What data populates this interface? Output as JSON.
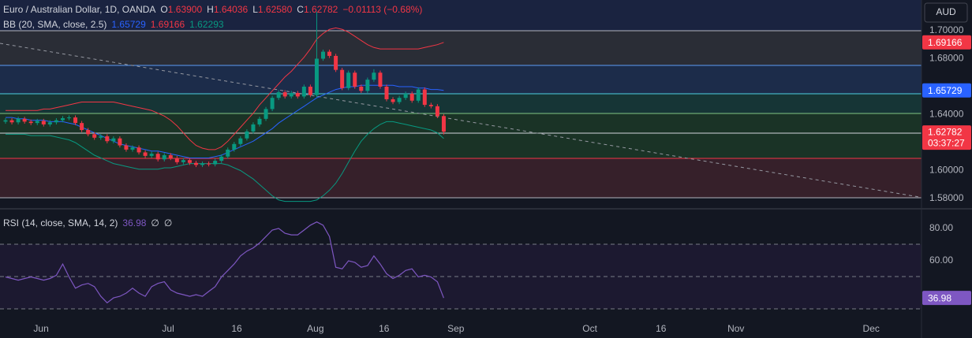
{
  "chart_data": [
    {
      "type": "candlestick",
      "title": "Euro / Australian Dollar, 1D, OANDA",
      "status_line": [
        {
          "label": "O",
          "value": "1.63900"
        },
        {
          "label": "H",
          "value": "1.64036"
        },
        {
          "label": "L",
          "value": "1.62580"
        },
        {
          "label": "C",
          "value": "1.62782"
        }
      ],
      "change": "−0.01113 (−0.68%)",
      "indicator": "BB (20, SMA, close, 2.5)",
      "currency": "AUD",
      "countdown": "03:37:27",
      "up_color": "#089981",
      "down_color": "#f23645",
      "xlim": [
        -0.87,
        144.1
      ],
      "ylim": [
        1.57437,
        1.72197
      ],
      "yticks": [
        {
          "value": 1.7,
          "label": "1.70000"
        },
        {
          "value": 1.68,
          "label": "1.68000"
        },
        {
          "value": 1.64,
          "label": "1.64000"
        },
        {
          "value": 1.6,
          "label": "1.60000"
        },
        {
          "value": 1.58,
          "label": "1.58000"
        }
      ],
      "open": [
        1.635,
        1.636,
        1.6345,
        1.637,
        1.635,
        1.634,
        1.6355,
        1.633,
        1.6345,
        1.636,
        1.6375,
        1.638,
        1.634,
        1.629,
        1.626,
        1.6235,
        1.6245,
        1.621,
        1.623,
        1.618,
        1.615,
        1.6165,
        1.613,
        1.6105,
        1.612,
        1.608,
        1.611,
        1.609,
        1.606,
        1.6075,
        1.6055,
        1.604,
        1.605,
        1.6045,
        1.607,
        1.61,
        1.615,
        1.619,
        1.623,
        1.628,
        1.633,
        1.637,
        1.644,
        1.652,
        1.656,
        1.653,
        1.6555,
        1.653,
        1.66,
        1.654,
        1.68,
        1.685,
        1.682,
        1.672,
        1.659,
        1.67,
        1.66,
        1.657,
        1.665,
        1.67,
        1.66,
        1.651,
        1.649,
        1.652,
        1.655,
        1.65,
        1.658,
        1.647,
        1.646,
        1.639
      ],
      "high": [
        1.6375,
        1.6375,
        1.6385,
        1.6385,
        1.6365,
        1.637,
        1.637,
        1.636,
        1.6375,
        1.639,
        1.6395,
        1.6395,
        1.6355,
        1.6305,
        1.6275,
        1.626,
        1.626,
        1.6245,
        1.6245,
        1.6195,
        1.618,
        1.618,
        1.6145,
        1.6135,
        1.6135,
        1.6125,
        1.6125,
        1.6105,
        1.609,
        1.609,
        1.607,
        1.6065,
        1.6065,
        1.6085,
        1.6115,
        1.6165,
        1.6205,
        1.6245,
        1.6295,
        1.6345,
        1.6385,
        1.6455,
        1.6535,
        1.6575,
        1.6575,
        1.657,
        1.657,
        1.6615,
        1.6615,
        1.7135,
        1.6865,
        1.6865,
        1.6835,
        1.6735,
        1.6715,
        1.6715,
        1.6615,
        1.6665,
        1.6725,
        1.6715,
        1.6615,
        1.6525,
        1.6535,
        1.6565,
        1.6565,
        1.6595,
        1.6595,
        1.6485,
        1.6475,
        1.64036
      ],
      "low": [
        1.6335,
        1.633,
        1.633,
        1.6335,
        1.6325,
        1.6325,
        1.6315,
        1.6315,
        1.633,
        1.6345,
        1.636,
        1.6325,
        1.6275,
        1.6245,
        1.622,
        1.622,
        1.6195,
        1.6195,
        1.6165,
        1.6135,
        1.6135,
        1.6115,
        1.609,
        1.609,
        1.6065,
        1.6065,
        1.6075,
        1.6045,
        1.6045,
        1.604,
        1.6025,
        1.6025,
        1.603,
        1.603,
        1.6055,
        1.6085,
        1.6135,
        1.6175,
        1.6215,
        1.6265,
        1.6315,
        1.6355,
        1.6425,
        1.6505,
        1.6515,
        1.6515,
        1.6515,
        1.6515,
        1.6525,
        1.6525,
        1.6785,
        1.6805,
        1.6705,
        1.6575,
        1.6575,
        1.6585,
        1.6555,
        1.6555,
        1.6635,
        1.6585,
        1.6495,
        1.6475,
        1.6475,
        1.6505,
        1.6485,
        1.6485,
        1.6455,
        1.6445,
        1.6375,
        1.6258
      ],
      "close": [
        1.636,
        1.6345,
        1.637,
        1.635,
        1.634,
        1.6355,
        1.633,
        1.6345,
        1.636,
        1.6375,
        1.638,
        1.634,
        1.629,
        1.626,
        1.6235,
        1.6245,
        1.621,
        1.623,
        1.618,
        1.615,
        1.6165,
        1.613,
        1.6105,
        1.612,
        1.608,
        1.611,
        1.609,
        1.606,
        1.6075,
        1.6055,
        1.604,
        1.605,
        1.6045,
        1.607,
        1.61,
        1.615,
        1.619,
        1.623,
        1.628,
        1.633,
        1.637,
        1.644,
        1.652,
        1.656,
        1.653,
        1.6555,
        1.653,
        1.66,
        1.654,
        1.68,
        1.685,
        1.682,
        1.672,
        1.659,
        1.67,
        1.66,
        1.657,
        1.665,
        1.67,
        1.66,
        1.651,
        1.649,
        1.652,
        1.655,
        1.65,
        1.658,
        1.647,
        1.646,
        1.639,
        1.62782
      ],
      "bands": [
        {
          "color": "#f23645",
          "values": [
            1.643,
            1.643,
            1.643,
            1.643,
            1.643,
            1.643,
            1.644,
            1.644,
            1.645,
            1.646,
            1.647,
            1.648,
            1.649,
            1.649,
            1.649,
            1.649,
            1.649,
            1.649,
            1.648,
            1.647,
            1.646,
            1.645,
            1.644,
            1.643,
            1.641,
            1.639,
            1.636,
            1.632,
            1.627,
            1.622,
            1.618,
            1.616,
            1.615,
            1.615,
            1.617,
            1.621,
            1.626,
            1.631,
            1.636,
            1.641,
            1.647,
            1.652,
            1.657,
            1.662,
            1.667,
            1.671,
            1.676,
            1.681,
            1.687,
            1.694,
            1.698,
            1.701,
            1.702,
            1.701,
            1.699,
            1.696,
            1.693,
            1.69,
            1.688,
            1.687,
            1.687,
            1.687,
            1.687,
            1.687,
            1.687,
            1.687,
            1.688,
            1.689,
            1.69,
            1.69166
          ]
        },
        {
          "color": "#2962ff",
          "values": [
            1.638,
            1.638,
            1.637,
            1.637,
            1.636,
            1.636,
            1.636,
            1.635,
            1.635,
            1.635,
            1.634,
            1.633,
            1.631,
            1.629,
            1.627,
            1.625,
            1.623,
            1.621,
            1.619,
            1.618,
            1.617,
            1.616,
            1.615,
            1.614,
            1.614,
            1.613,
            1.612,
            1.611,
            1.61,
            1.609,
            1.609,
            1.609,
            1.609,
            1.61,
            1.611,
            1.613,
            1.615,
            1.617,
            1.619,
            1.621,
            1.624,
            1.627,
            1.63,
            1.634,
            1.637,
            1.64,
            1.643,
            1.646,
            1.649,
            1.652,
            1.654,
            1.656,
            1.658,
            1.659,
            1.66,
            1.66,
            1.661,
            1.661,
            1.661,
            1.661,
            1.661,
            1.661,
            1.66,
            1.66,
            1.66,
            1.659,
            1.659,
            1.658,
            1.658,
            1.65729
          ]
        },
        {
          "color": "#089981",
          "values": [
            1.626,
            1.626,
            1.626,
            1.626,
            1.625,
            1.625,
            1.625,
            1.625,
            1.624,
            1.623,
            1.622,
            1.62,
            1.617,
            1.614,
            1.611,
            1.609,
            1.607,
            1.605,
            1.604,
            1.603,
            1.602,
            1.601,
            1.601,
            1.601,
            1.601,
            1.602,
            1.602,
            1.603,
            1.604,
            1.605,
            1.605,
            1.605,
            1.605,
            1.605,
            1.605,
            1.604,
            1.602,
            1.6,
            1.597,
            1.594,
            1.59,
            1.586,
            1.582,
            1.579,
            1.578,
            1.578,
            1.578,
            1.578,
            1.578,
            1.579,
            1.582,
            1.586,
            1.591,
            1.598,
            1.606,
            1.614,
            1.621,
            1.626,
            1.63,
            1.633,
            1.635,
            1.635,
            1.634,
            1.633,
            1.632,
            1.631,
            1.63,
            1.629,
            1.627,
            1.62293
          ]
        }
      ]
    },
    {
      "type": "line",
      "title": "RSI (14, close, SMA, 14, 2)",
      "indicator_extras": [
        "∅",
        "∅"
      ],
      "color": "#7e57c2",
      "xlim": [
        -0.87,
        144.1
      ],
      "ylim": [
        23.9,
        90.7
      ],
      "yticks": [
        {
          "value": 80,
          "label": "80.00"
        },
        {
          "value": 60,
          "label": "60.00"
        }
      ],
      "xticks": [
        {
          "value": 5.6,
          "label": "Jun"
        },
        {
          "value": 25.6,
          "label": "Jul"
        },
        {
          "value": 36.4,
          "label": "16"
        },
        {
          "value": 48.8,
          "label": "Aug"
        },
        {
          "value": 59.6,
          "label": "16"
        },
        {
          "value": 70.9,
          "label": "Sep"
        },
        {
          "value": 92,
          "label": "Oct"
        },
        {
          "value": 103.2,
          "label": "16"
        },
        {
          "value": 115,
          "label": "Nov"
        },
        {
          "value": 136.3,
          "label": "Dec"
        }
      ],
      "values": [
        50,
        49,
        48,
        49,
        50,
        49,
        48,
        49,
        51,
        58,
        50,
        43,
        45,
        46,
        44,
        38,
        34,
        37,
        38,
        40,
        43,
        40,
        38,
        44,
        46,
        47,
        42,
        40,
        39,
        38,
        39,
        38,
        41,
        44,
        50,
        54,
        58,
        63,
        66,
        68,
        71,
        75,
        79,
        80,
        77,
        76,
        76,
        79,
        82,
        84,
        82,
        75,
        56,
        55,
        60,
        59,
        56,
        57,
        63,
        58,
        52,
        49,
        51,
        54,
        55,
        50,
        51,
        50,
        47,
        36.98
      ]
    }
  ]
}
